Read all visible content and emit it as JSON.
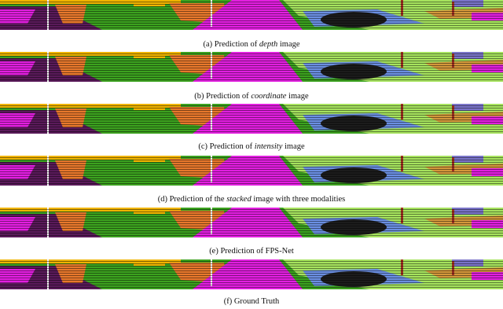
{
  "captions": [
    {
      "before": "(a) Prediction of ",
      "em": "depth",
      "after": " image"
    },
    {
      "before": "(b) Prediction of ",
      "em": "coordinate",
      "after": " image"
    },
    {
      "before": "(c) Prediction of ",
      "em": "intensity",
      "after": " image"
    },
    {
      "before": "(d) Prediction of the ",
      "em": "stacked",
      "after": " image with three modalities"
    },
    {
      "before": "(e) Prediction of FPS-Net"
    },
    {
      "before": "(f) Ground Truth"
    }
  ]
}
